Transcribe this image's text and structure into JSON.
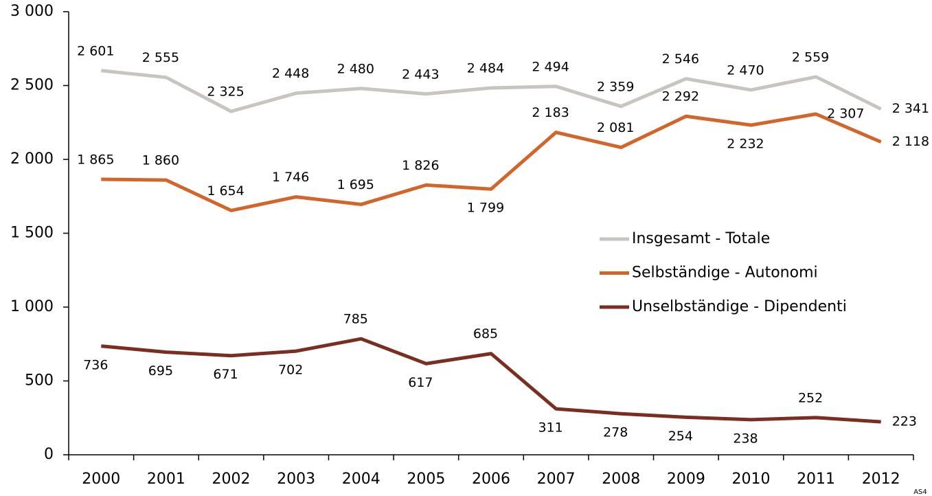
{
  "chart_data": {
    "type": "line",
    "categories": [
      "2000",
      "2001",
      "2002",
      "2003",
      "2004",
      "2005",
      "2006",
      "2007",
      "2008",
      "2009",
      "2010",
      "2011",
      "2012"
    ],
    "series": [
      {
        "name": "Insgesamt - Totale",
        "color": "#c8c4c0",
        "values": [
          2601,
          2555,
          2325,
          2448,
          2480,
          2443,
          2484,
          2494,
          2359,
          2546,
          2470,
          2559,
          2341
        ],
        "value_labels": [
          "2 601",
          "2 555",
          "2 325",
          "2 448",
          "2 480",
          "2 443",
          "2 484",
          "2 494",
          "2 359",
          "2 546",
          "2 470",
          "2 559",
          "2 341"
        ]
      },
      {
        "name": "Selbständige - Autonomi",
        "color": "#d2652a",
        "values": [
          1865,
          1860,
          1654,
          1746,
          1695,
          1826,
          1799,
          2183,
          2081,
          2292,
          2232,
          2307,
          2118
        ],
        "value_labels": [
          "1 865",
          "1 860",
          "1 654",
          "1 746",
          "1 695",
          "1 826",
          "1 799",
          "2 183",
          "2 081",
          "2 292",
          "2 232",
          "2 307",
          "2 118"
        ]
      },
      {
        "name": "Unselbständige - Dipendenti",
        "color": "#7b2d20",
        "values": [
          736,
          695,
          671,
          702,
          785,
          617,
          685,
          311,
          278,
          254,
          238,
          252,
          223
        ]
      }
    ],
    "ylim": [
      0,
      3000
    ],
    "yticks": [
      0,
      500,
      {
        "value": 1000,
        "label": "1 000"
      },
      {
        "value": 1500,
        "label": "1 500"
      },
      {
        "value": 2000,
        "label": "2 000"
      },
      {
        "value": 2500,
        "label": "2 500"
      },
      {
        "value": 3000,
        "label": "3 000"
      }
    ],
    "grid": false,
    "legend": "right",
    "note": "AS4"
  }
}
